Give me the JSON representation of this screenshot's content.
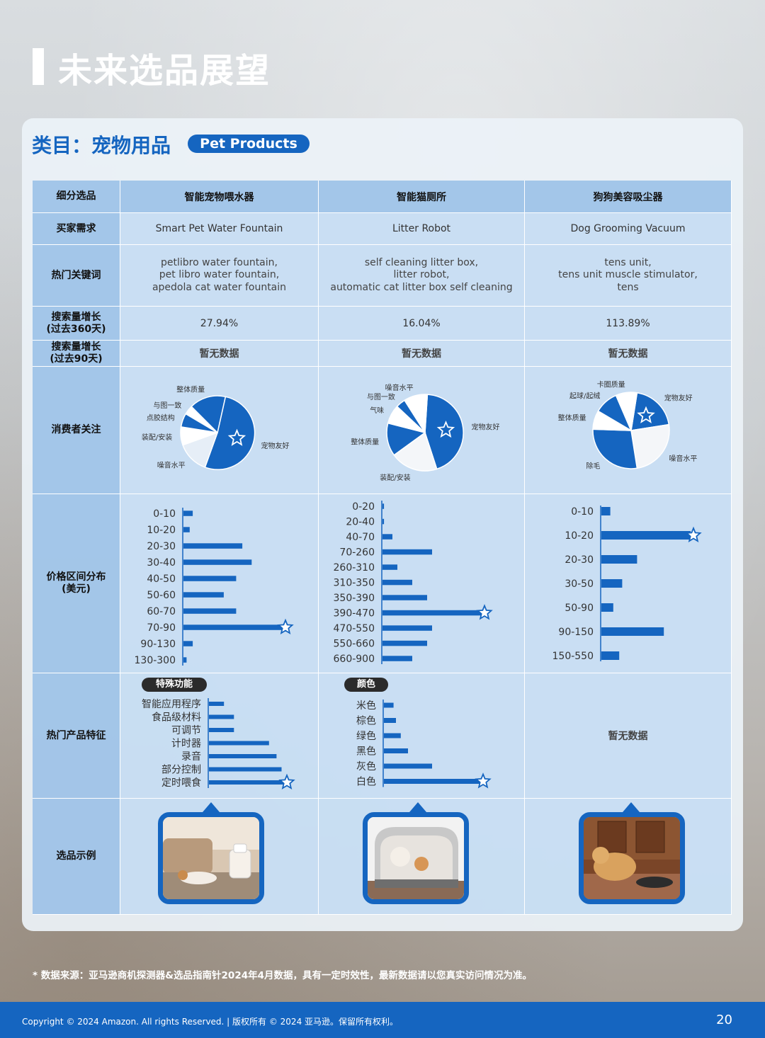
{
  "page_title": "未来选品展望",
  "category_label": "类目：宠物用品",
  "category_pill": "Pet Products",
  "columns": [
    "智能宠物喂水器",
    "智能猫厕所",
    "狗狗美容吸尘器"
  ],
  "row_labels": {
    "segment": "细分选品",
    "demand": "买家需求",
    "keywords": "热门关键词",
    "growth360": "搜索量增长\n(过去360天)",
    "growth90": "搜索量增长\n(过去90天)",
    "focus": "消费者关注",
    "price": "价格区间分布\n(美元)",
    "features": "热门产品特征",
    "examples": "选品示例"
  },
  "demand": [
    "Smart Pet Water Fountain",
    "Litter Robot",
    "Dog Grooming Vacuum"
  ],
  "keywords": [
    [
      "petlibro water fountain,",
      "pet libro water fountain,",
      "apedola cat water fountain"
    ],
    [
      "self cleaning litter box,",
      "litter robot,",
      "automatic cat litter box self cleaning"
    ],
    [
      "tens unit,",
      "tens unit muscle stimulator,",
      "tens"
    ]
  ],
  "growth360": [
    "27.94%",
    "16.04%",
    "113.89%"
  ],
  "growth90": [
    "暂无数据",
    "暂无数据",
    "暂无数据"
  ],
  "features_col3": "暂无数据",
  "colors": {
    "accent": "#1565c0",
    "light_slice": "#ffffff",
    "star": "#ffffff"
  },
  "chart_data": [
    {
      "type": "pie",
      "title": "",
      "categories": [
        "宠物友好",
        "噪音水平",
        "装配/安装",
        "点胶结构",
        "与图一致",
        "整体质量"
      ],
      "values": [
        52,
        14,
        8,
        6,
        4,
        16
      ],
      "highlight": "宠物友好"
    },
    {
      "type": "pie",
      "title": "",
      "categories": [
        "宠物友好",
        "装配/安装",
        "整体质量",
        "气味",
        "与图一致",
        "噪音水平"
      ],
      "values": [
        44,
        20,
        14,
        8,
        4,
        10
      ],
      "highlight": "宠物友好"
    },
    {
      "type": "pie",
      "title": "",
      "categories": [
        "宠物友好",
        "噪音水平",
        "除毛",
        "整体质量",
        "起球/起绒",
        "卡圈质量"
      ],
      "values": [
        20,
        25,
        28,
        8,
        10,
        9
      ],
      "highlight": "宠物友好"
    },
    {
      "type": "bar",
      "orientation": "horizontal",
      "categories": [
        "0-10",
        "10-20",
        "20-30",
        "30-40",
        "40-50",
        "50-60",
        "60-70",
        "70-90",
        "90-130",
        "130-300"
      ],
      "values": [
        3,
        2,
        19,
        22,
        17,
        13,
        17,
        32,
        3,
        1
      ],
      "highlight": "70-90"
    },
    {
      "type": "bar",
      "orientation": "horizontal",
      "categories": [
        "0-20",
        "20-40",
        "40-70",
        "70-260",
        "260-310",
        "310-350",
        "350-390",
        "390-470",
        "470-550",
        "550-660",
        "660-900"
      ],
      "values": [
        0.3,
        0.3,
        2,
        10,
        3,
        6,
        9,
        20,
        10,
        9,
        6
      ],
      "highlight": "390-470"
    },
    {
      "type": "bar",
      "orientation": "horizontal",
      "categories": [
        "0-10",
        "10-20",
        "20-30",
        "30-50",
        "50-90",
        "90-150",
        "150-550"
      ],
      "values": [
        3,
        30,
        12,
        7,
        4,
        21,
        6
      ],
      "highlight": "10-20"
    },
    {
      "type": "bar",
      "orientation": "horizontal",
      "title": "特殊功能",
      "categories": [
        "智能应用程序",
        "食品级材料",
        "可调节",
        "计时器",
        "录音",
        "部分控制",
        "定时喂食"
      ],
      "values": [
        6,
        10,
        10,
        24,
        27,
        29,
        30
      ],
      "highlight": "定时喂食"
    },
    {
      "type": "bar",
      "orientation": "horizontal",
      "title": "颜色",
      "categories": [
        "米色",
        "棕色",
        "绿色",
        "黑色",
        "灰色",
        "白色"
      ],
      "values": [
        4,
        5,
        7,
        10,
        20,
        40
      ],
      "highlight": "白色"
    }
  ],
  "footnote": "* 数据来源：亚马逊商机探测器&选品指南针2024年4月数据，具有一定时效性，最新数据请以您真实访问情况为准。",
  "footer": {
    "copyright": "Copyright © 2024 Amazon. All rights Reserved. | 版权所有 © 2024 亚马逊。保留所有权利。",
    "page_number": "20"
  }
}
